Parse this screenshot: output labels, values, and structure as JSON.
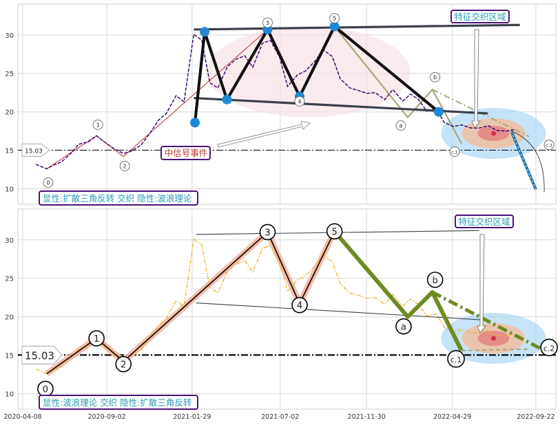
{
  "colors": {
    "price_top": "#3b0a6b",
    "price_bottom": "#f0b030",
    "wave_black": "#111111",
    "wave_highlight": "#f4b5a0",
    "triangle_line": "#3a3f4b",
    "olive": "#a8a878",
    "green_correction": "#6e8b22",
    "label_border": "#4b137a",
    "label_text": "#2a9ab5",
    "event_text": "#c0392b",
    "node_blue": "#1f88d6",
    "region_blue": "#a8d4f2",
    "region_orange": "#f0c0a0",
    "region_red": "#e07a80",
    "pink_ellipse": "#f6dde2",
    "projection_blue": "#1a6fa8",
    "grid": "#d9d9d9"
  },
  "chart_data": [
    {
      "type": "line",
      "panel": "top",
      "x_type": "date",
      "ylim": [
        8,
        34
      ],
      "yticks": [
        10,
        15,
        20,
        25,
        30
      ],
      "reference_line": {
        "y": 15.03,
        "label": "15.03",
        "style": "dash-dot"
      },
      "series": [
        {
          "style": "dashed",
          "x": [
            "2020-05-01",
            "2020-05-10",
            "2020-05-20",
            "2020-06-01",
            "2020-06-15",
            "2020-07-01",
            "2020-07-15",
            "2020-08-01",
            "2020-08-15",
            "2020-09-01",
            "2020-09-15",
            "2020-10-01",
            "2020-10-15",
            "2020-11-01",
            "2020-11-15",
            "2020-12-01",
            "2020-12-15",
            "2021-01-01",
            "2021-01-15",
            "2021-02-01",
            "2021-02-15",
            "2021-03-01",
            "2021-03-15",
            "2021-04-01",
            "2021-04-15",
            "2021-05-01",
            "2021-05-15",
            "2021-06-01",
            "2021-06-15",
            "2021-07-01",
            "2021-07-15",
            "2021-08-01",
            "2021-08-15",
            "2021-09-01",
            "2021-09-15",
            "2021-10-01",
            "2021-10-15",
            "2021-11-01",
            "2021-11-15",
            "2021-12-01",
            "2021-12-15",
            "2022-01-01",
            "2022-01-15",
            "2022-02-01",
            "2022-02-15",
            "2022-03-01",
            "2022-03-15",
            "2022-04-01",
            "2022-04-15",
            "2022-05-01",
            "2022-05-15",
            "2022-06-01",
            "2022-06-15",
            "2022-07-01",
            "2022-07-15",
            "2022-08-01",
            "2022-08-15"
          ],
          "y": [
            13.2,
            12.9,
            12.6,
            13.1,
            13.5,
            14.6,
            15.8,
            16.1,
            16.9,
            15.9,
            15.2,
            14.6,
            14.9,
            15.7,
            17.1,
            18.9,
            19.8,
            22.1,
            21.3,
            30.1,
            29.3,
            23.8,
            23.1,
            25.9,
            26.8,
            27.3,
            25.8,
            28.9,
            29.3,
            27.1,
            23.3,
            24.8,
            25.3,
            26.6,
            28.1,
            27.2,
            24.3,
            23.1,
            22.8,
            22.4,
            22.5,
            21.6,
            22.9,
            21.4,
            22.3,
            21.6,
            20.1,
            20.4,
            18.6,
            18.1,
            18.3,
            17.9,
            17.9,
            18.2,
            17.6,
            17.5,
            17.7
          ]
        }
      ],
      "wave_points": [
        {
          "label": "0",
          "x": "2020-05-20",
          "y": 12.6
        },
        {
          "label": "1",
          "x": "2020-08-15",
          "y": 16.9
        },
        {
          "label": "2",
          "x": "2020-10-01",
          "y": 14.2
        },
        {
          "label": "3",
          "x": "2021-06-10",
          "y": 30.7
        },
        {
          "label": "4",
          "x": "2021-08-05",
          "y": 22.0
        },
        {
          "label": "5",
          "x": "2021-10-05",
          "y": 31.1
        },
        {
          "label": "a",
          "x": "2022-02-10",
          "y": 19.3
        },
        {
          "label": "b",
          "x": "2022-03-25",
          "y": 22.9
        },
        {
          "label": "c.1",
          "x": "2022-05-15",
          "y": 15.9
        },
        {
          "label": "c.2",
          "x": "2022-10-15",
          "y": 16.6
        }
      ],
      "triangle_pivots": [
        {
          "x": "2021-02-03",
          "y": 18.6
        },
        {
          "x": "2021-02-20",
          "y": 30.4
        },
        {
          "x": "2021-03-31",
          "y": 21.6
        },
        {
          "x": "2021-06-10",
          "y": 30.7
        },
        {
          "x": "2021-08-05",
          "y": 22.0
        },
        {
          "x": "2021-10-05",
          "y": 31.1
        },
        {
          "x": "2022-04-05",
          "y": 20.0
        }
      ],
      "annotations": {
        "feature_region": "特征交织区域",
        "signal_event": "中信号事件",
        "panel_label": "显性:扩散三角反转 交织 隐性:波浪理论"
      }
    },
    {
      "type": "line",
      "panel": "bottom",
      "x_type": "date",
      "ylim": [
        8,
        34
      ],
      "yticks": [
        10,
        15,
        20,
        25,
        30
      ],
      "xticks": [
        "2020-04-08",
        "2020-09-02",
        "2021-01-29",
        "2021-07-02",
        "2021-11-30",
        "2022-04-29",
        "2022-09-22"
      ],
      "reference_line": {
        "y": 15.03,
        "label": "15.03",
        "style": "dash-dot"
      },
      "series": [
        {
          "style": "dashed",
          "x": [
            "2020-05-01",
            "2020-05-10",
            "2020-05-20",
            "2020-06-01",
            "2020-06-15",
            "2020-07-01",
            "2020-07-15",
            "2020-08-01",
            "2020-08-15",
            "2020-09-01",
            "2020-09-15",
            "2020-10-01",
            "2020-10-15",
            "2020-11-01",
            "2020-11-15",
            "2020-12-01",
            "2020-12-15",
            "2021-01-01",
            "2021-01-15",
            "2021-02-01",
            "2021-02-15",
            "2021-03-01",
            "2021-03-15",
            "2021-04-01",
            "2021-04-15",
            "2021-05-01",
            "2021-05-15",
            "2021-06-01",
            "2021-06-15",
            "2021-07-01",
            "2021-07-15",
            "2021-08-01",
            "2021-08-15",
            "2021-09-01",
            "2021-09-15",
            "2021-10-01",
            "2021-10-15",
            "2021-11-01",
            "2021-11-15",
            "2021-12-01",
            "2021-12-15",
            "2022-01-01",
            "2022-01-15",
            "2022-02-01",
            "2022-02-15",
            "2022-03-01",
            "2022-03-15",
            "2022-04-01",
            "2022-04-15",
            "2022-05-01",
            "2022-05-15",
            "2022-06-01",
            "2022-06-15",
            "2022-07-01",
            "2022-07-15",
            "2022-08-01",
            "2022-08-15"
          ],
          "y": [
            13.2,
            12.9,
            12.6,
            13.1,
            13.5,
            14.6,
            15.8,
            16.1,
            16.9,
            15.9,
            15.2,
            14.6,
            14.9,
            15.7,
            17.1,
            18.9,
            19.8,
            22.1,
            21.3,
            30.1,
            29.3,
            23.8,
            23.1,
            25.9,
            26.8,
            27.3,
            25.8,
            28.9,
            29.3,
            27.1,
            23.3,
            24.8,
            25.3,
            26.6,
            28.1,
            27.2,
            24.3,
            23.1,
            22.8,
            22.4,
            22.5,
            21.6,
            22.9,
            21.4,
            22.3,
            21.6,
            20.1,
            20.4,
            18.6,
            18.1,
            18.3,
            17.9,
            17.9,
            18.2,
            17.6,
            17.5,
            17.7
          ]
        }
      ],
      "wave_points": [
        {
          "label": "0",
          "x": "2020-05-20",
          "y": 12.6
        },
        {
          "label": "1",
          "x": "2020-08-15",
          "y": 17.2
        },
        {
          "label": "2",
          "x": "2020-10-01",
          "y": 14.2
        },
        {
          "label": "3",
          "x": "2021-06-10",
          "y": 31.0
        },
        {
          "label": "4",
          "x": "2021-08-05",
          "y": 21.7
        },
        {
          "label": "5",
          "x": "2021-10-05",
          "y": 31.1
        },
        {
          "label": "a",
          "x": "2022-02-10",
          "y": 20.0
        },
        {
          "label": "b",
          "x": "2022-03-25",
          "y": 23.2
        },
        {
          "label": "c.1",
          "x": "2022-05-15",
          "y": 15.6
        },
        {
          "label": "c.2",
          "x": "2022-10-15",
          "y": 15.3
        }
      ],
      "annotations": {
        "feature_region": "特征交织区域",
        "panel_label": "显性:波浪理论 交织 隐性:扩散三角反转"
      }
    }
  ]
}
